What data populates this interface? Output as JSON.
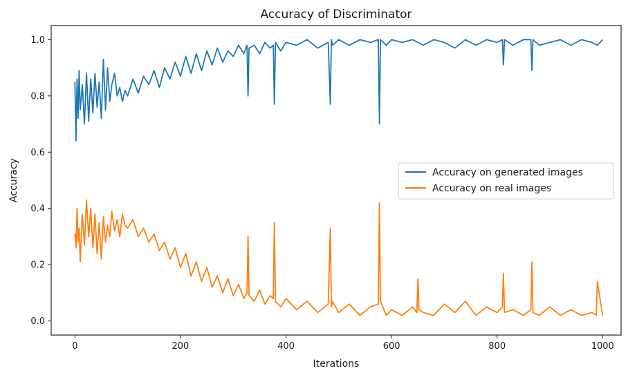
{
  "chart_data": {
    "type": "line",
    "title": "Accuracy of Discriminator",
    "xlabel": "Iterations",
    "ylabel": "Accuracy",
    "xlim": [
      -45,
      1035
    ],
    "ylim": [
      -0.05,
      1.05
    ],
    "xticks": [
      0,
      200,
      400,
      600,
      800,
      1000
    ],
    "yticks": [
      0.0,
      0.2,
      0.4,
      0.6,
      0.8,
      1.0
    ],
    "xtick_labels": [
      "0",
      "200",
      "400",
      "600",
      "800",
      "1000"
    ],
    "ytick_labels": [
      "0.0",
      "0.2",
      "0.4",
      "0.6",
      "0.8",
      "1.0"
    ],
    "grid": false,
    "legend_position": "center-right",
    "series": [
      {
        "name": "Accuracy on generated images",
        "color": "#1f77b4",
        "x": [
          0,
          2,
          4,
          6,
          8,
          10,
          14,
          18,
          22,
          26,
          30,
          34,
          38,
          42,
          46,
          50,
          54,
          58,
          62,
          66,
          70,
          75,
          80,
          85,
          90,
          95,
          100,
          110,
          120,
          130,
          140,
          150,
          160,
          170,
          180,
          190,
          200,
          210,
          220,
          230,
          240,
          250,
          260,
          270,
          280,
          290,
          300,
          310,
          320,
          326,
          328,
          330,
          340,
          350,
          360,
          370,
          376,
          378,
          380,
          390,
          400,
          420,
          440,
          460,
          480,
          484,
          486,
          488,
          500,
          520,
          540,
          560,
          575,
          577,
          579,
          590,
          600,
          620,
          640,
          660,
          680,
          700,
          720,
          740,
          760,
          780,
          800,
          810,
          812,
          814,
          830,
          850,
          864,
          866,
          868,
          880,
          900,
          920,
          940,
          960,
          980,
          990,
          1000
        ],
        "y": [
          0.85,
          0.64,
          0.86,
          0.72,
          0.89,
          0.75,
          0.84,
          0.7,
          0.88,
          0.71,
          0.86,
          0.74,
          0.88,
          0.76,
          0.85,
          0.72,
          0.93,
          0.75,
          0.9,
          0.78,
          0.84,
          0.88,
          0.8,
          0.83,
          0.78,
          0.82,
          0.8,
          0.86,
          0.81,
          0.87,
          0.84,
          0.89,
          0.83,
          0.9,
          0.86,
          0.92,
          0.87,
          0.94,
          0.88,
          0.95,
          0.89,
          0.96,
          0.91,
          0.97,
          0.92,
          0.96,
          0.94,
          0.98,
          0.95,
          0.98,
          0.8,
          0.97,
          0.98,
          0.95,
          0.99,
          0.97,
          0.98,
          0.77,
          0.99,
          0.96,
          0.99,
          0.98,
          1.0,
          0.97,
          0.99,
          0.77,
          1.0,
          0.98,
          1.0,
          0.98,
          1.0,
          0.99,
          1.0,
          0.7,
          1.0,
          0.98,
          1.0,
          0.99,
          1.0,
          0.98,
          1.0,
          0.99,
          0.97,
          1.0,
          0.98,
          1.0,
          0.99,
          1.0,
          0.91,
          1.0,
          0.98,
          1.0,
          1.0,
          0.89,
          1.0,
          0.98,
          0.99,
          1.0,
          0.98,
          1.0,
          0.99,
          0.98,
          1.0
        ]
      },
      {
        "name": "Accuracy on real images",
        "color": "#ff7f0e",
        "x": [
          0,
          2,
          4,
          6,
          8,
          10,
          14,
          18,
          22,
          26,
          30,
          34,
          38,
          42,
          46,
          50,
          54,
          58,
          62,
          66,
          70,
          75,
          80,
          85,
          90,
          95,
          100,
          110,
          120,
          130,
          140,
          150,
          160,
          170,
          180,
          190,
          200,
          210,
          220,
          230,
          240,
          250,
          260,
          270,
          280,
          290,
          300,
          310,
          320,
          326,
          328,
          330,
          340,
          350,
          360,
          370,
          376,
          378,
          380,
          390,
          400,
          420,
          440,
          460,
          480,
          484,
          486,
          488,
          500,
          520,
          540,
          560,
          575,
          577,
          579,
          590,
          600,
          620,
          640,
          648,
          650,
          652,
          660,
          680,
          700,
          720,
          740,
          760,
          780,
          800,
          810,
          812,
          814,
          830,
          850,
          864,
          866,
          868,
          880,
          900,
          920,
          940,
          960,
          980,
          988,
          990,
          1000
        ],
        "y": [
          0.31,
          0.26,
          0.4,
          0.28,
          0.33,
          0.21,
          0.38,
          0.27,
          0.43,
          0.3,
          0.4,
          0.26,
          0.38,
          0.24,
          0.35,
          0.22,
          0.37,
          0.28,
          0.34,
          0.3,
          0.39,
          0.32,
          0.36,
          0.3,
          0.38,
          0.34,
          0.33,
          0.36,
          0.3,
          0.33,
          0.28,
          0.31,
          0.25,
          0.28,
          0.22,
          0.26,
          0.19,
          0.24,
          0.16,
          0.21,
          0.14,
          0.19,
          0.12,
          0.16,
          0.1,
          0.15,
          0.09,
          0.13,
          0.08,
          0.1,
          0.3,
          0.09,
          0.07,
          0.11,
          0.06,
          0.09,
          0.08,
          0.35,
          0.07,
          0.05,
          0.08,
          0.04,
          0.07,
          0.03,
          0.06,
          0.33,
          0.05,
          0.07,
          0.03,
          0.06,
          0.02,
          0.05,
          0.06,
          0.42,
          0.07,
          0.02,
          0.04,
          0.02,
          0.05,
          0.03,
          0.15,
          0.04,
          0.03,
          0.02,
          0.06,
          0.03,
          0.07,
          0.02,
          0.05,
          0.03,
          0.05,
          0.17,
          0.03,
          0.04,
          0.02,
          0.04,
          0.21,
          0.03,
          0.02,
          0.05,
          0.02,
          0.04,
          0.02,
          0.03,
          0.02,
          0.14,
          0.02
        ]
      }
    ]
  }
}
